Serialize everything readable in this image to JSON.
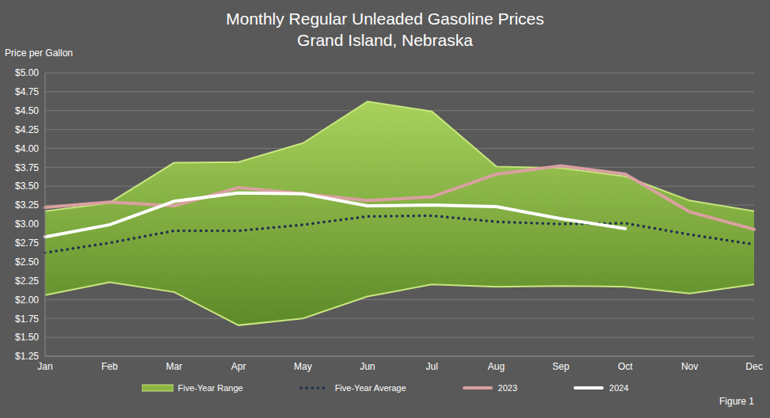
{
  "chart_data": {
    "type": "line",
    "title": "Monthly Regular Unleaded Gasoline Prices",
    "subtitle": "Grand Island, Nebraska",
    "y_label": "Price per Gallon",
    "annotations": [
      "Figure 1"
    ],
    "categories": [
      "Jan",
      "Feb",
      "Mar",
      "Apr",
      "May",
      "Jun",
      "Jul",
      "Aug",
      "Sep",
      "Oct",
      "Nov",
      "Dec"
    ],
    "series": [
      {
        "name": "Five-Year Range",
        "type": "range",
        "color": "#8db543",
        "low": [
          2.06,
          2.23,
          2.1,
          1.66,
          1.75,
          2.04,
          2.2,
          2.17,
          2.18,
          2.17,
          2.08,
          2.2
        ],
        "high": [
          3.17,
          3.28,
          3.81,
          3.82,
          4.07,
          4.62,
          4.49,
          3.76,
          3.74,
          3.63,
          3.31,
          3.17
        ]
      },
      {
        "name": "Five-Year Average",
        "type": "line",
        "color": "#1f3050",
        "line_style": "dotted",
        "values": [
          2.62,
          2.75,
          2.91,
          2.91,
          2.99,
          3.1,
          3.11,
          3.03,
          3.0,
          3.01,
          2.86,
          2.73
        ]
      },
      {
        "name": "2023",
        "type": "line",
        "color": "#d9a0a0",
        "line_style": "solid",
        "values": [
          3.22,
          3.29,
          3.24,
          3.48,
          3.4,
          3.31,
          3.36,
          3.66,
          3.77,
          3.66,
          3.16,
          2.93
        ]
      },
      {
        "name": "2024",
        "type": "line",
        "color": "#ffffff",
        "line_style": "solid",
        "values": [
          2.83,
          2.99,
          3.3,
          3.41,
          3.4,
          3.24,
          3.25,
          3.23,
          3.07,
          2.94,
          null,
          null
        ]
      }
    ],
    "ylim": [
      1.25,
      5.0
    ],
    "yticks": [
      {
        "value": 1.25,
        "label": "$1.25"
      },
      {
        "value": 1.5,
        "label": "$1.50"
      },
      {
        "value": 1.75,
        "label": "$1.75"
      },
      {
        "value": 2.0,
        "label": "$2.00"
      },
      {
        "value": 2.25,
        "label": "$2.25"
      },
      {
        "value": 2.5,
        "label": "$2.50"
      },
      {
        "value": 2.75,
        "label": "$2.75"
      },
      {
        "value": 3.0,
        "label": "$3.00"
      },
      {
        "value": 3.25,
        "label": "$3.25"
      },
      {
        "value": 3.5,
        "label": "$3.50"
      },
      {
        "value": 3.75,
        "label": "$3.75"
      },
      {
        "value": 4.0,
        "label": "$4.00"
      },
      {
        "value": 4.25,
        "label": "$4.25"
      },
      {
        "value": 4.5,
        "label": "$4.50"
      },
      {
        "value": 4.75,
        "label": "$4.75"
      },
      {
        "value": 5.0,
        "label": "$5.00"
      }
    ],
    "grid": true
  }
}
